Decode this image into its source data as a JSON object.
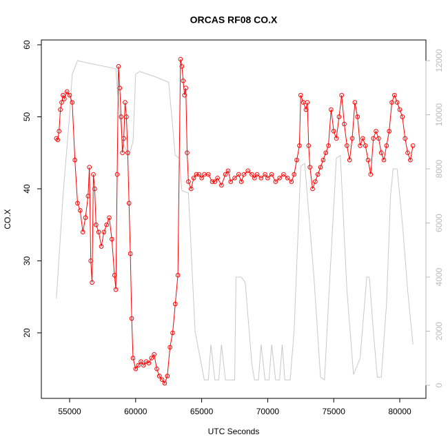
{
  "chart_data": {
    "type": "line",
    "title": "ORCAS RF08 CO.X",
    "x_label": "UTC Seconds",
    "y_label": "CO.X",
    "xlim": [
      52860,
      81983
    ],
    "xticks": [
      55000,
      60000,
      65000,
      70000,
      75000,
      80000
    ],
    "ylim": [
      10.9,
      60.67
    ],
    "yticks": [
      20,
      30,
      40,
      50,
      60
    ],
    "y2lim": [
      -484,
      12764
    ],
    "y2ticks": [
      0,
      2000,
      4000,
      6000,
      8000,
      10000,
      12000
    ],
    "series": [
      {
        "color": "#ff0000",
        "markers": true,
        "x": [
          54000,
          54100,
          54200,
          54300,
          54400,
          54500,
          54600,
          54800,
          55000,
          55200,
          55400,
          55600,
          55800,
          56000,
          56200,
          56400,
          56500,
          56600,
          56700,
          56800,
          56900,
          57000,
          57200,
          57400,
          57600,
          57800,
          58000,
          58200,
          58400,
          58500,
          58600,
          58700,
          58800,
          58900,
          59000,
          59100,
          59200,
          59300,
          59400,
          59500,
          59600,
          59700,
          59800,
          60000,
          60200,
          60400,
          60600,
          60800,
          61000,
          61200,
          61400,
          61600,
          61800,
          62000,
          62200,
          62400,
          62600,
          62800,
          63000,
          63200,
          63400,
          63500,
          63600,
          63700,
          63800,
          63900,
          64000,
          64200,
          64400,
          64600,
          64800,
          65000,
          65200,
          65500,
          65800,
          66000,
          66200,
          66500,
          66800,
          67000,
          67200,
          67500,
          67800,
          68000,
          68200,
          68500,
          68800,
          69000,
          69200,
          69500,
          69800,
          70000,
          70300,
          70600,
          70900,
          71200,
          71500,
          71800,
          72000,
          72200,
          72400,
          72500,
          72700,
          72900,
          73000,
          73100,
          73200,
          73400,
          73600,
          73800,
          74000,
          74200,
          74400,
          74600,
          74800,
          75000,
          75200,
          75400,
          75600,
          75800,
          76000,
          76200,
          76400,
          76600,
          76800,
          77000,
          77200,
          77400,
          77600,
          77800,
          78000,
          78200,
          78400,
          78600,
          78800,
          79000,
          79200,
          79400,
          79600,
          79800,
          80000,
          80200,
          80400,
          80600,
          80800,
          81000
        ],
        "values": [
          47,
          46.8,
          48,
          51,
          52,
          53,
          52.5,
          53.5,
          53,
          52,
          44,
          38,
          37,
          34,
          36,
          39,
          43,
          30,
          27,
          42,
          40,
          35,
          34,
          32,
          34,
          35,
          36,
          33,
          28,
          26,
          42,
          57,
          54,
          50,
          45,
          47,
          52,
          50,
          45,
          38,
          31,
          22,
          16.5,
          15,
          15.5,
          16,
          15.5,
          16,
          15.8,
          16.5,
          17,
          15,
          14,
          13.5,
          13,
          14,
          18,
          20,
          24,
          28,
          58,
          57,
          55,
          53,
          54,
          45,
          41,
          40,
          41.5,
          42,
          42,
          41.5,
          42,
          42,
          41,
          41,
          41.5,
          40.5,
          42,
          42.5,
          41,
          41.5,
          42,
          41,
          42,
          42.5,
          42,
          41.5,
          42,
          41.5,
          42,
          41.5,
          42,
          41,
          41.5,
          42,
          41.5,
          41,
          42,
          44,
          46,
          53,
          52,
          51,
          52,
          46,
          43,
          40,
          41,
          42,
          43,
          44,
          45,
          46,
          51,
          48,
          47,
          50,
          53,
          49,
          46,
          44,
          47,
          52,
          50,
          46,
          47,
          46,
          44,
          42,
          47,
          48,
          47,
          45,
          44,
          46,
          48,
          52,
          53,
          52,
          51,
          50,
          47,
          45,
          44,
          46
        ]
      },
      {
        "color": "#c8c8c8",
        "axis": "y2",
        "markers": false,
        "x": [
          54000,
          54500,
          55000,
          55200,
          55600,
          56500,
          57500,
          58500,
          58600,
          59000,
          59500,
          59800,
          60000,
          60300,
          61500,
          62500,
          63000,
          63300,
          63500,
          64000,
          64500,
          65200,
          65500,
          65700,
          66000,
          66300,
          66500,
          66800,
          67500,
          67600,
          68000,
          68300,
          68800,
          69000,
          69300,
          69500,
          69800,
          70100,
          70300,
          70600,
          70900,
          71100,
          71300,
          71700,
          72000,
          72500,
          72800,
          73500,
          74000,
          74300,
          74600,
          75200,
          75500,
          76000,
          76500,
          77000,
          77500,
          77700,
          78000,
          78300,
          78600,
          79000,
          79300,
          79500,
          79800,
          80200,
          80600,
          81000
        ],
        "values": [
          3200,
          7000,
          10000,
          11500,
          12000,
          11900,
          11800,
          11700,
          11000,
          9000,
          8500,
          9000,
          11500,
          11600,
          11400,
          11200,
          8500,
          8400,
          7200,
          7100,
          2000,
          200,
          200,
          1500,
          200,
          200,
          1500,
          200,
          200,
          4000,
          4000,
          3800,
          800,
          200,
          200,
          1500,
          200,
          200,
          1500,
          200,
          200,
          1500,
          200,
          200,
          2000,
          8100,
          8200,
          4000,
          300,
          200,
          3000,
          8400,
          8500,
          3500,
          400,
          1000,
          4000,
          4000,
          2000,
          300,
          300,
          3000,
          7000,
          8000,
          8000,
          6000,
          3500,
          1500
        ]
      }
    ]
  }
}
